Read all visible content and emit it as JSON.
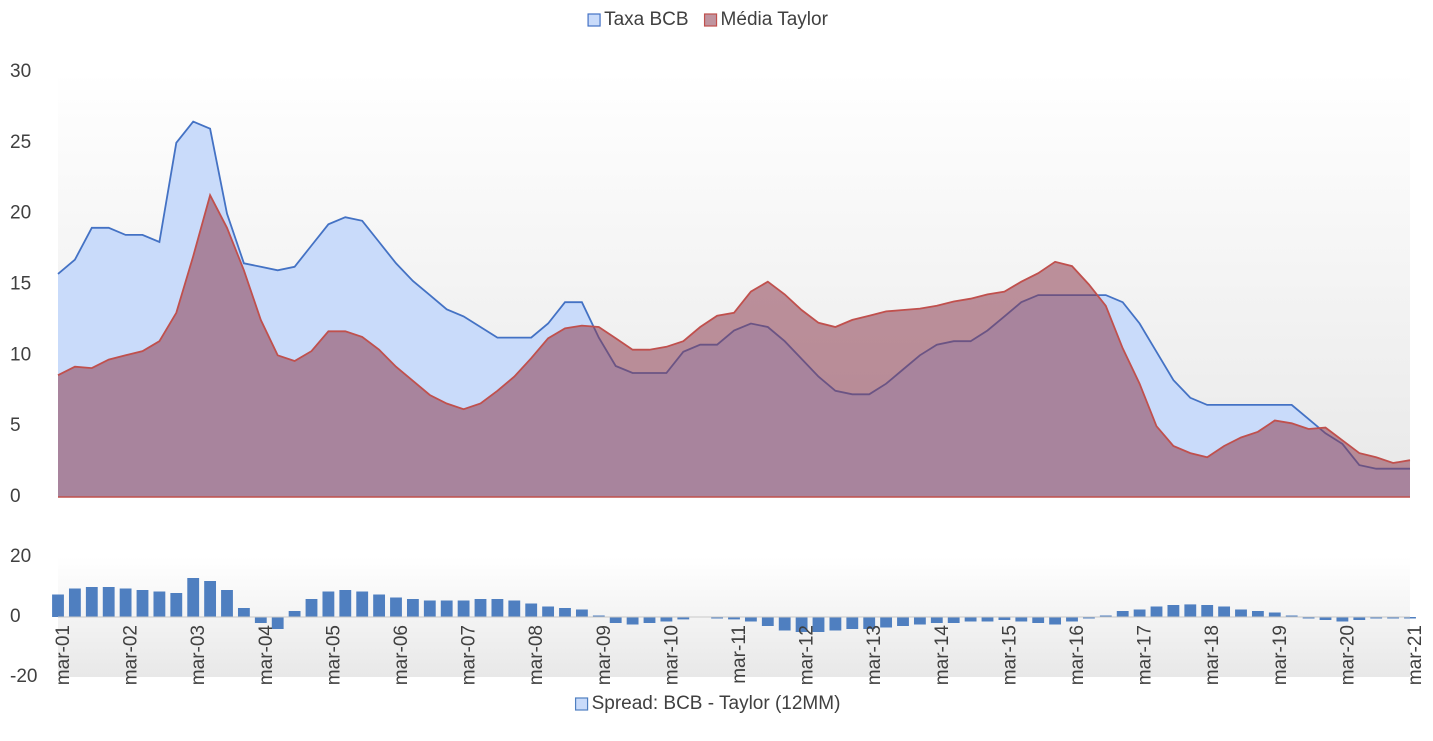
{
  "chart_data": [
    {
      "type": "area",
      "series": [
        {
          "name": "Taxa BCB",
          "color": "#4472c4",
          "fill": "#c9dbfa",
          "values": [
            15.75,
            16.75,
            19,
            19,
            18.5,
            18.5,
            18,
            25,
            26.5,
            26,
            20,
            16.5,
            16.25,
            16,
            16.25,
            17.75,
            19.25,
            19.75,
            19.5,
            18,
            16.5,
            15.25,
            14.25,
            13.25,
            12.75,
            12,
            11.25,
            11.25,
            11.25,
            12.25,
            13.75,
            13.75,
            11.25,
            9.25,
            8.75,
            8.75,
            8.75,
            10.25,
            10.75,
            10.75,
            11.75,
            12.25,
            12,
            11,
            9.75,
            8.5,
            7.5,
            7.25,
            7.25,
            8,
            9,
            10,
            10.75,
            11,
            11,
            11.75,
            12.75,
            13.75,
            14.25,
            14.25,
            14.25,
            14.25,
            14.25,
            13.75,
            12.25,
            10.25,
            8.25,
            7,
            6.5,
            6.5,
            6.5,
            6.5,
            6.5,
            6.5,
            5.5,
            4.5,
            3.75,
            2.25,
            2,
            2,
            2
          ]
        },
        {
          "name": "Média Taylor",
          "color": "#c0504d",
          "fill": "rgba(140,60,80,0.55)",
          "values": [
            8.6,
            9.2,
            9.1,
            9.7,
            10,
            10.3,
            11,
            13,
            17,
            21.3,
            19,
            16,
            12.5,
            10,
            9.6,
            10.3,
            11.7,
            11.7,
            11.3,
            10.4,
            9.2,
            8.2,
            7.2,
            6.6,
            6.2,
            6.6,
            7.5,
            8.5,
            9.8,
            11.2,
            11.9,
            12.1,
            12,
            11.2,
            10.4,
            10.4,
            10.6,
            11,
            12,
            12.8,
            13,
            14.5,
            15.2,
            14.3,
            13.2,
            12.3,
            12,
            12.5,
            12.8,
            13.1,
            13.2,
            13.3,
            13.5,
            13.8,
            14,
            14.3,
            14.5,
            15.2,
            15.8,
            16.6,
            16.3,
            15,
            13.5,
            10.5,
            8,
            5,
            3.6,
            3.1,
            2.8,
            3.6,
            4.2,
            4.6,
            5.4,
            5.2,
            4.8,
            4.9,
            4,
            3.1,
            2.8,
            2.4,
            2.6
          ]
        }
      ],
      "ylim": [
        0,
        30
      ],
      "yticks": [
        0,
        5,
        10,
        15,
        20,
        25,
        30
      ],
      "legend": "top",
      "grid": false
    },
    {
      "type": "bar",
      "categories": [
        "mar-01",
        null,
        null,
        null,
        "mar-02",
        null,
        null,
        null,
        "mar-03",
        null,
        null,
        null,
        "mar-04",
        null,
        null,
        null,
        "mar-05",
        null,
        null,
        null,
        "mar-06",
        null,
        null,
        null,
        "mar-07",
        null,
        null,
        null,
        "mar-08",
        null,
        null,
        null,
        "mar-09",
        null,
        null,
        null,
        "mar-10",
        null,
        null,
        null,
        "mar-11",
        null,
        null,
        null,
        "mar-12",
        null,
        null,
        null,
        "mar-13",
        null,
        null,
        null,
        "mar-14",
        null,
        null,
        null,
        "mar-15",
        null,
        null,
        null,
        "mar-16",
        null,
        null,
        null,
        "mar-17",
        null,
        null,
        null,
        "mar-18",
        null,
        null,
        null,
        "mar-19",
        null,
        null,
        null,
        "mar-20",
        null,
        null,
        null,
        "mar-21"
      ],
      "series": [
        {
          "name": "Spread: BCB - Taylor (12MM)",
          "color": "#4f7fc0",
          "values": [
            7.5,
            9.5,
            10,
            10,
            9.5,
            9,
            8.5,
            8,
            13,
            12,
            9,
            3,
            -2,
            -4,
            2,
            6,
            8.5,
            9,
            8.5,
            7.5,
            6.5,
            6,
            5.5,
            5.5,
            5.5,
            6,
            6,
            5.5,
            4.5,
            3.5,
            3,
            2.5,
            0.5,
            -2,
            -2.5,
            -2,
            -1.5,
            -0.8,
            0,
            -0.5,
            -0.8,
            -1.5,
            -3,
            -4.5,
            -5,
            -5,
            -4.5,
            -4,
            -4,
            -3.5,
            -3,
            -2.5,
            -2,
            -2,
            -1.5,
            -1.5,
            -1,
            -1.5,
            -2,
            -2.5,
            -1.5,
            -0.5,
            0.5,
            2,
            2.5,
            3.5,
            4,
            4.2,
            4,
            3.5,
            2.5,
            2,
            1.5,
            0.5,
            -0.5,
            -1,
            -1.5,
            -1,
            -0.5,
            -0.5,
            -0.5
          ]
        }
      ],
      "ylim": [
        -20,
        20
      ],
      "yticks": [
        -20,
        0,
        20
      ],
      "legend": "bottom",
      "grid": false
    }
  ]
}
